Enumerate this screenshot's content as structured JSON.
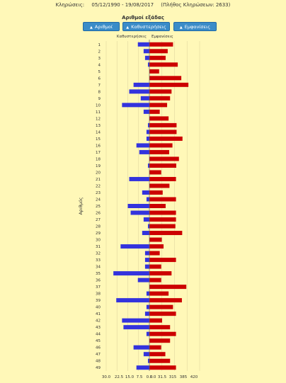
{
  "header": {
    "label": "Κληρώσεις:",
    "date_range": "05/12/1990 - 19/08/2017",
    "draws_count": "(Πλήθος Κληρώσεων: 2633)"
  },
  "section_title": "Αριθμοί εξάδας",
  "buttons": {
    "numbers": "Αριθμοί",
    "delays": "Καθυστερήσεις",
    "appearances": "Εμφανίσεις"
  },
  "chart_data": {
    "type": "bar",
    "orientation": "horizontal-diverging",
    "ylabel": "Αριθμός",
    "left_label": "Καθυστερήσεις",
    "right_label": "Εμφανίσεις",
    "x_tick_labels": [
      "30.0",
      "22.5",
      "15.0",
      "7.5",
      "0.0",
      "0.0",
      "31.5",
      "315",
      "385",
      "420"
    ],
    "categories": [
      "1",
      "2",
      "3",
      "4",
      "5",
      "6",
      "7",
      "8",
      "9",
      "10",
      "11",
      "12",
      "13",
      "14",
      "15",
      "16",
      "17",
      "18",
      "19",
      "20",
      "21",
      "22",
      "23",
      "24",
      "25",
      "26",
      "27",
      "28",
      "29",
      "30",
      "31",
      "32",
      "33",
      "34",
      "35",
      "36",
      "37",
      "38",
      "39",
      "40",
      "41",
      "42",
      "43",
      "44",
      "45",
      "46",
      "47",
      "48",
      "49"
    ],
    "series": [
      {
        "name": "Καθυστερήσεις",
        "color": "#3333dd",
        "values": [
          8,
          4,
          3,
          1,
          0,
          0,
          11,
          14,
          6,
          19,
          4,
          0,
          1,
          2,
          2,
          9,
          7,
          0,
          1,
          0,
          14,
          0,
          5,
          2,
          15,
          13,
          4,
          1,
          5,
          0,
          20,
          3,
          3,
          3,
          25,
          8,
          0,
          2,
          23,
          2,
          3,
          19,
          18,
          2,
          0,
          11,
          4,
          1,
          9
        ]
      },
      {
        "name": "Εμφανίσεις",
        "color": "#cc0000",
        "values": [
          330,
          312,
          305,
          346,
          283,
          358,
          382,
          325,
          320,
          310,
          285,
          315,
          342,
          342,
          362,
          328,
          317,
          350,
          341,
          290,
          340,
          318,
          295,
          340,
          305,
          340,
          340,
          338,
          361,
          292,
          298,
          285,
          340,
          290,
          325,
          290,
          375,
          315,
          360,
          330,
          340,
          293,
          320,
          340,
          320,
          290,
          304,
          320,
          340
        ]
      }
    ],
    "grid": true
  }
}
